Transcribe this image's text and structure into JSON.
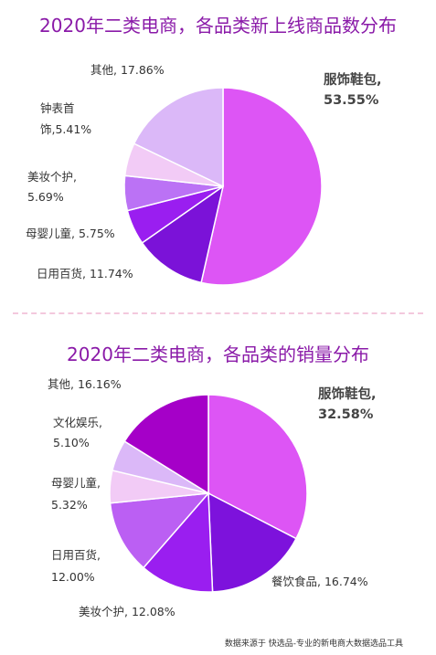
{
  "page": {
    "footer": "数据来源于 快选品-专业的新电商大数据选品工具"
  },
  "chart_data": [
    {
      "type": "pie",
      "title": "2020年二类电商，各品类新上线商品数分布",
      "slices": [
        {
          "name": "服饰鞋包",
          "value": 53.55,
          "color": "#dd55f5",
          "label_lines": [
            "服饰鞋包,",
            "53.55%"
          ],
          "emphasis": true
        },
        {
          "name": "日用百货",
          "value": 11.74,
          "color": "#7b12d8",
          "label_lines": [
            "日用百货, 11.74%"
          ]
        },
        {
          "name": "母婴儿童",
          "value": 5.75,
          "color": "#9a1ef0",
          "label_lines": [
            "母婴儿童, 5.75%"
          ]
        },
        {
          "name": "美妆个护",
          "value": 5.69,
          "color": "#bb72f5",
          "label_lines": [
            "美妆个护,",
            "5.69%"
          ]
        },
        {
          "name": "钟表首饰",
          "value": 5.41,
          "color": "#f2cbf6",
          "label_lines": [
            "钟表首",
            "饰,5.41%"
          ]
        },
        {
          "name": "其他",
          "value": 17.86,
          "color": "#dbb8f8",
          "label_lines": [
            "其他, 17.86%"
          ]
        }
      ]
    },
    {
      "type": "pie",
      "title": "2020年二类电商，各品类的销量分布",
      "slices": [
        {
          "name": "服饰鞋包",
          "value": 32.58,
          "color": "#dd55f5",
          "label_lines": [
            "服饰鞋包,",
            "32.58%"
          ],
          "emphasis": true
        },
        {
          "name": "餐饮食品",
          "value": 16.74,
          "color": "#7d12dc",
          "label_lines": [
            "餐饮食品, 16.74%"
          ]
        },
        {
          "name": "美妆个护",
          "value": 12.08,
          "color": "#9a1ef0",
          "label_lines": [
            "美妆个护, 12.08%"
          ]
        },
        {
          "name": "日用百货",
          "value": 12.0,
          "color": "#bb5ff3",
          "label_lines": [
            "日用百货,",
            "12.00%"
          ]
        },
        {
          "name": "母婴儿童",
          "value": 5.32,
          "color": "#f2cbf6",
          "label_lines": [
            "母婴儿童,",
            "5.32%"
          ]
        },
        {
          "name": "文化娱乐",
          "value": 5.1,
          "color": "#dbb8f8",
          "label_lines": [
            "文化娱乐,",
            "5.10%"
          ]
        },
        {
          "name": "其他",
          "value": 16.16,
          "color": "#a500c8",
          "label_lines": [
            "其他, 16.16%"
          ]
        }
      ]
    }
  ]
}
